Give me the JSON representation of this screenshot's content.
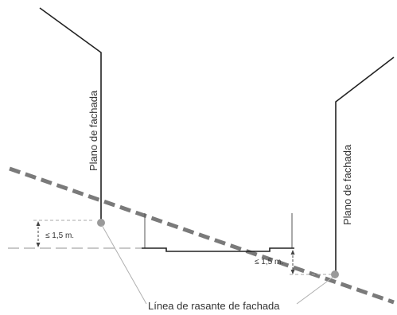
{
  "labels": {
    "facade_plane_left": "Plano de fachada",
    "facade_plane_right": "Plano de fachada",
    "dimension_left": "≤ 1,5 m.",
    "dimension_right": "≤ 1,5 m.",
    "grade_line": "Línea de rasante de fachada"
  },
  "colors": {
    "wall": "#222222",
    "grade_dashed": "#7a7a7a",
    "reference_dashed": "#a8a8a8",
    "leader": "#b0b0b0",
    "point": "#9a9a9a"
  }
}
